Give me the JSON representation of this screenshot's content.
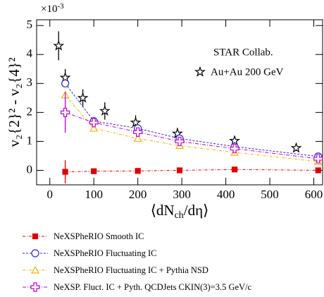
{
  "chart_data": {
    "type": "scatter",
    "multiplier": "×10",
    "multiplier_exp": "-3",
    "y_label": "v₂{2}² - v₂{4}²",
    "x_label_parts": [
      "⟨dN",
      "ch",
      "/dη⟩"
    ],
    "annotation": "STAR Collab.",
    "xlim": [
      -30,
      620
    ],
    "xticks": [
      0,
      100,
      200,
      300,
      400,
      500,
      600
    ],
    "ylim": [
      -0.5,
      5.2
    ],
    "yticks": [
      0,
      1,
      2,
      3,
      4,
      5
    ],
    "series": [
      {
        "name": "Au+Au 200 GeV",
        "color": "#000000",
        "marker": "star",
        "line": false,
        "x": [
          20,
          35,
          75,
          125,
          195,
          290,
          420,
          560
        ],
        "values": [
          4.3,
          3.2,
          2.5,
          2.05,
          1.65,
          1.27,
          1.02,
          0.77
        ],
        "errors": [
          0.5,
          0.3,
          0.3,
          0.3,
          0.25,
          0.2,
          0.15,
          0.1
        ]
      },
      {
        "name": "NeXSPheRIO Smooth IC",
        "color": "#e00000",
        "marker": "square",
        "line": true,
        "dash": "4,2,1,2",
        "x": [
          35,
          100,
          200,
          295,
          420,
          610
        ],
        "values": [
          -0.05,
          -0.03,
          -0.02,
          0.0,
          0.03,
          0.0
        ],
        "errors": [
          0.4,
          0,
          0,
          0,
          0,
          0
        ]
      },
      {
        "name": "NeXSPheRIO Fluctuating IC",
        "color": "#2a2ad8",
        "marker": "circle",
        "line": true,
        "dash": "3,2",
        "x": [
          35,
          100,
          200,
          295,
          420,
          610
        ],
        "values": [
          3.0,
          1.7,
          1.45,
          1.1,
          0.82,
          0.48
        ],
        "errors": [
          0,
          0,
          0,
          0,
          0,
          0
        ]
      },
      {
        "name": "NeXSPheRIO Fluctuating IC + Pythia NSD",
        "color": "#f0b400",
        "marker": "triangle",
        "line": true,
        "dash": "4,2,1,2",
        "x": [
          35,
          100,
          200,
          295,
          420,
          610
        ],
        "values": [
          2.6,
          1.45,
          1.1,
          0.85,
          0.62,
          0.3
        ],
        "errors": [
          0,
          0,
          0,
          0,
          0,
          0
        ]
      },
      {
        "name": "NeXSP. Fluct. IC + Pyth. QCDJets CKIN(3)=3.5 GeV/c",
        "color": "#c000d0",
        "marker": "cross",
        "line": true,
        "dash": "5,2,1,2",
        "x": [
          35,
          100,
          200,
          295,
          420,
          610
        ],
        "values": [
          2.0,
          1.65,
          1.32,
          1.0,
          0.75,
          0.4
        ],
        "errors": [
          0.7,
          0,
          0,
          0,
          0,
          0
        ]
      }
    ]
  }
}
